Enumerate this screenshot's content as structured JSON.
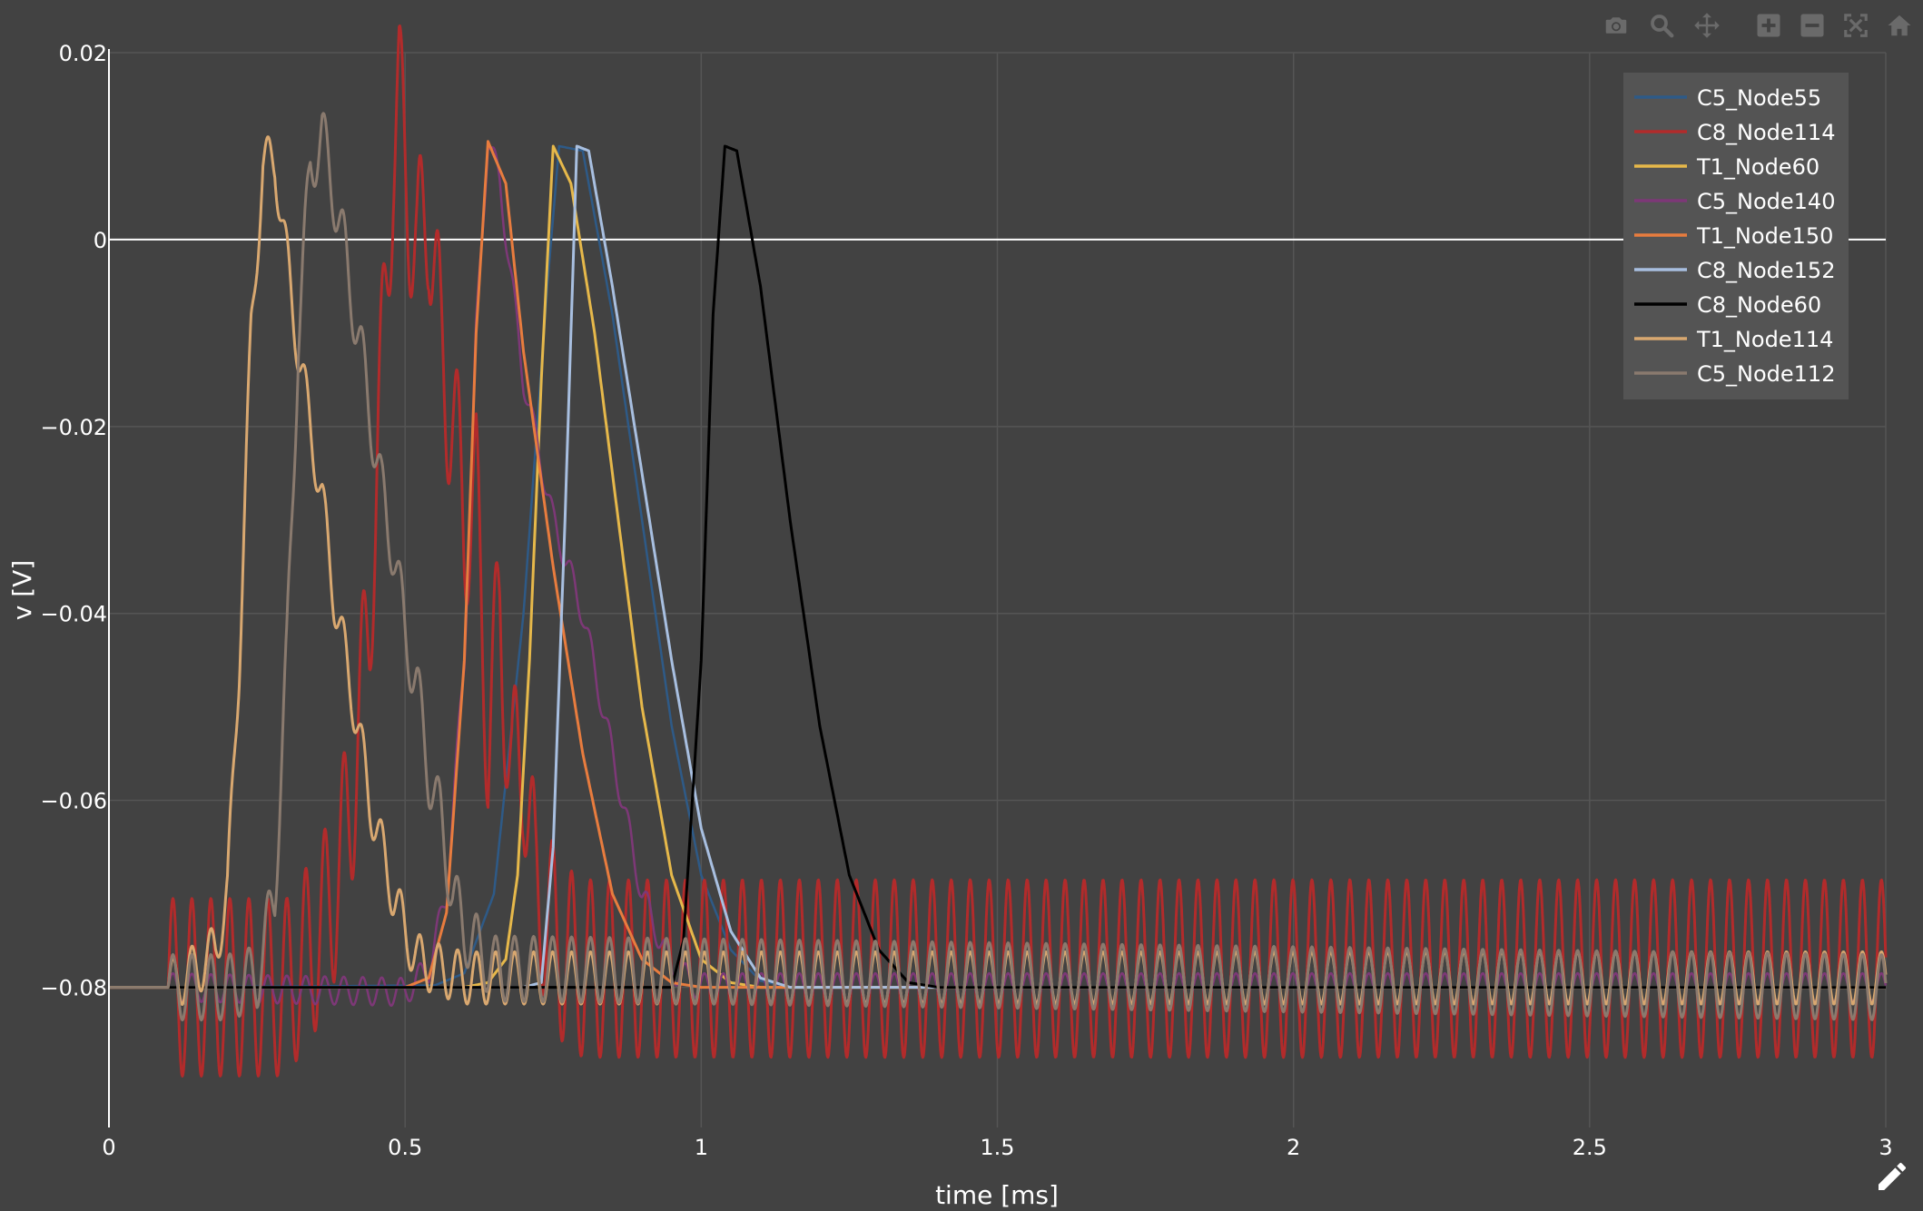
{
  "toolbar": {
    "buttons": [
      {
        "name": "camera-icon"
      },
      {
        "name": "zoom-icon"
      },
      {
        "name": "pan-icon"
      },
      {
        "name": "zoom-in-icon"
      },
      {
        "name": "zoom-out-icon"
      },
      {
        "name": "autoscale-icon"
      },
      {
        "name": "reset-axes-icon"
      }
    ],
    "edit_icon": "pencil-icon"
  },
  "chart_data": {
    "type": "line",
    "title": "",
    "xlabel": "time [ms]",
    "ylabel": "v [V]",
    "xlim": [
      0,
      3
    ],
    "ylim": [
      -0.095,
      0.02
    ],
    "x_ticks": [
      0,
      0.5,
      1,
      1.5,
      2,
      2.5,
      3
    ],
    "x_tick_labels": [
      "0",
      "0.5",
      "1",
      "1.5",
      "2",
      "2.5",
      "3"
    ],
    "y_ticks": [
      0.02,
      0,
      -0.02,
      -0.04,
      -0.06,
      -0.08
    ],
    "y_tick_labels": [
      "0.02",
      "0",
      "−0.02",
      "−0.04",
      "−0.06",
      "−0.08"
    ],
    "grid": true,
    "zero_line": true,
    "legend_position": "top-right",
    "colors": {
      "background": "#424242",
      "grid": "#555555",
      "zero_line": "#ffffff",
      "axis": "#ffffff",
      "legend_bg": "#545454"
    },
    "series": [
      {
        "name": "C5_Node55",
        "color": "#2e5a87",
        "width": 2.5,
        "x": [
          0,
          0.1,
          0.55,
          0.6,
          0.65,
          0.7,
          0.74,
          0.76,
          0.8,
          0.85,
          0.9,
          0.95,
          1.0,
          1.05,
          1.1,
          1.15,
          1.2,
          3
        ],
        "y": [
          -0.08,
          -0.08,
          -0.0798,
          -0.0785,
          -0.07,
          -0.04,
          -0.005,
          0.01,
          0.0095,
          -0.008,
          -0.03,
          -0.052,
          -0.068,
          -0.076,
          -0.0793,
          -0.08,
          -0.08,
          -0.08
        ]
      },
      {
        "name": "C8_Node114",
        "color": "#b22b2b",
        "width": 3,
        "x": [
          0,
          0.1,
          0.12,
          0.3,
          0.32,
          0.35,
          0.38,
          0.41,
          0.44,
          0.46,
          0.48,
          0.49,
          0.5,
          0.52,
          0.54,
          0.56,
          0.58,
          0.6,
          0.62,
          0.64,
          0.66,
          0.68,
          0.7,
          0.72,
          0.74,
          0.76,
          0.8,
          3
        ],
        "y": [
          -0.08,
          -0.08,
          -0.08,
          -0.08,
          -0.078,
          -0.075,
          -0.07,
          -0.06,
          -0.04,
          -0.015,
          0.01,
          0.0145,
          0.008,
          -0.002,
          0.004,
          -0.012,
          -0.019,
          -0.03,
          -0.028,
          -0.053,
          -0.04,
          -0.058,
          -0.055,
          -0.07,
          -0.072,
          -0.076,
          -0.078,
          -0.078
        ],
        "osc_amp": 0.0095,
        "osc_freq": 31.2
      },
      {
        "name": "T1_Node60",
        "color": "#e6b84a",
        "width": 3,
        "x": [
          0,
          0.1,
          0.6,
          0.64,
          0.67,
          0.69,
          0.71,
          0.73,
          0.75,
          0.78,
          0.82,
          0.86,
          0.9,
          0.95,
          1.0,
          1.05,
          1.1,
          1.2,
          3
        ],
        "y": [
          -0.08,
          -0.08,
          -0.08,
          -0.0795,
          -0.077,
          -0.068,
          -0.045,
          -0.015,
          0.01,
          0.006,
          -0.01,
          -0.03,
          -0.05,
          -0.068,
          -0.077,
          -0.0795,
          -0.08,
          -0.08,
          -0.08
        ]
      },
      {
        "name": "C5_Node140",
        "color": "#7d3877",
        "width": 2.5,
        "x": [
          0,
          0.1,
          0.5,
          0.54,
          0.57,
          0.6,
          0.62,
          0.64,
          0.66,
          0.7,
          0.75,
          0.8,
          0.85,
          0.9,
          0.95,
          1.0,
          3
        ],
        "y": [
          -0.08,
          -0.08,
          -0.0805,
          -0.078,
          -0.07,
          -0.045,
          -0.01,
          0.011,
          0.006,
          -0.015,
          -0.03,
          -0.04,
          -0.055,
          -0.07,
          -0.078,
          -0.08,
          -0.08
        ],
        "osc_amp": 0.0015,
        "osc_freq": 31.2
      },
      {
        "name": "T1_Node150",
        "color": "#e87c3e",
        "width": 3,
        "x": [
          0,
          0.1,
          0.5,
          0.54,
          0.57,
          0.6,
          0.62,
          0.64,
          0.67,
          0.7,
          0.75,
          0.8,
          0.85,
          0.9,
          0.95,
          1.0,
          1.05,
          3
        ],
        "y": [
          -0.08,
          -0.08,
          -0.08,
          -0.079,
          -0.072,
          -0.045,
          -0.01,
          0.0105,
          0.006,
          -0.012,
          -0.035,
          -0.055,
          -0.07,
          -0.077,
          -0.0795,
          -0.08,
          -0.08,
          -0.08
        ]
      },
      {
        "name": "C8_Node152",
        "color": "#a8bfe0",
        "width": 3,
        "x": [
          0,
          0.1,
          0.7,
          0.73,
          0.75,
          0.77,
          0.79,
          0.81,
          0.85,
          0.9,
          0.95,
          1.0,
          1.05,
          1.1,
          1.15,
          1.2,
          3
        ],
        "y": [
          -0.08,
          -0.08,
          -0.08,
          -0.0795,
          -0.065,
          -0.03,
          0.01,
          0.0095,
          -0.005,
          -0.025,
          -0.045,
          -0.063,
          -0.074,
          -0.079,
          -0.08,
          -0.08,
          -0.08
        ]
      },
      {
        "name": "C8_Node60",
        "color": "#000000",
        "width": 3,
        "x": [
          0,
          0.1,
          0.95,
          0.97,
          1.0,
          1.02,
          1.04,
          1.06,
          1.1,
          1.15,
          1.2,
          1.25,
          1.3,
          1.35,
          1.4,
          3
        ],
        "y": [
          -0.08,
          -0.08,
          -0.08,
          -0.075,
          -0.045,
          -0.008,
          0.01,
          0.0095,
          -0.005,
          -0.03,
          -0.052,
          -0.068,
          -0.076,
          -0.0795,
          -0.08,
          -0.08
        ]
      },
      {
        "name": "T1_Node114",
        "color": "#d9a870",
        "width": 3,
        "x": [
          0,
          0.1,
          0.15,
          0.18,
          0.2,
          0.22,
          0.24,
          0.26,
          0.28,
          0.3,
          0.32,
          0.34,
          0.36,
          0.38,
          0.4,
          0.42,
          0.44,
          0.46,
          0.48,
          0.5,
          0.52,
          0.55,
          0.6,
          3
        ],
        "y": [
          -0.08,
          -0.08,
          -0.078,
          -0.076,
          -0.07,
          -0.045,
          -0.01,
          0.008,
          0.0085,
          -0.002,
          -0.012,
          -0.02,
          -0.028,
          -0.038,
          -0.045,
          -0.052,
          -0.06,
          -0.065,
          -0.07,
          -0.074,
          -0.077,
          -0.078,
          -0.079,
          -0.079
        ],
        "osc_amp": 0.0028,
        "osc_freq": 31.2
      },
      {
        "name": "C5_Node112",
        "color": "#8a7a6e",
        "width": 3,
        "x": [
          0,
          0.1,
          0.2,
          0.25,
          0.28,
          0.3,
          0.32,
          0.34,
          0.36,
          0.38,
          0.4,
          0.42,
          0.44,
          0.46,
          0.48,
          0.5,
          0.52,
          0.54,
          0.56,
          0.58,
          0.6,
          0.65,
          3
        ],
        "y": [
          -0.08,
          -0.08,
          -0.08,
          -0.079,
          -0.07,
          -0.045,
          -0.01,
          0.008,
          0.011,
          0.005,
          -0.002,
          -0.01,
          -0.018,
          -0.027,
          -0.033,
          -0.042,
          -0.048,
          -0.057,
          -0.062,
          -0.07,
          -0.074,
          -0.078,
          -0.08
        ],
        "osc_amp": 0.0035,
        "osc_freq": 31.2
      }
    ]
  }
}
